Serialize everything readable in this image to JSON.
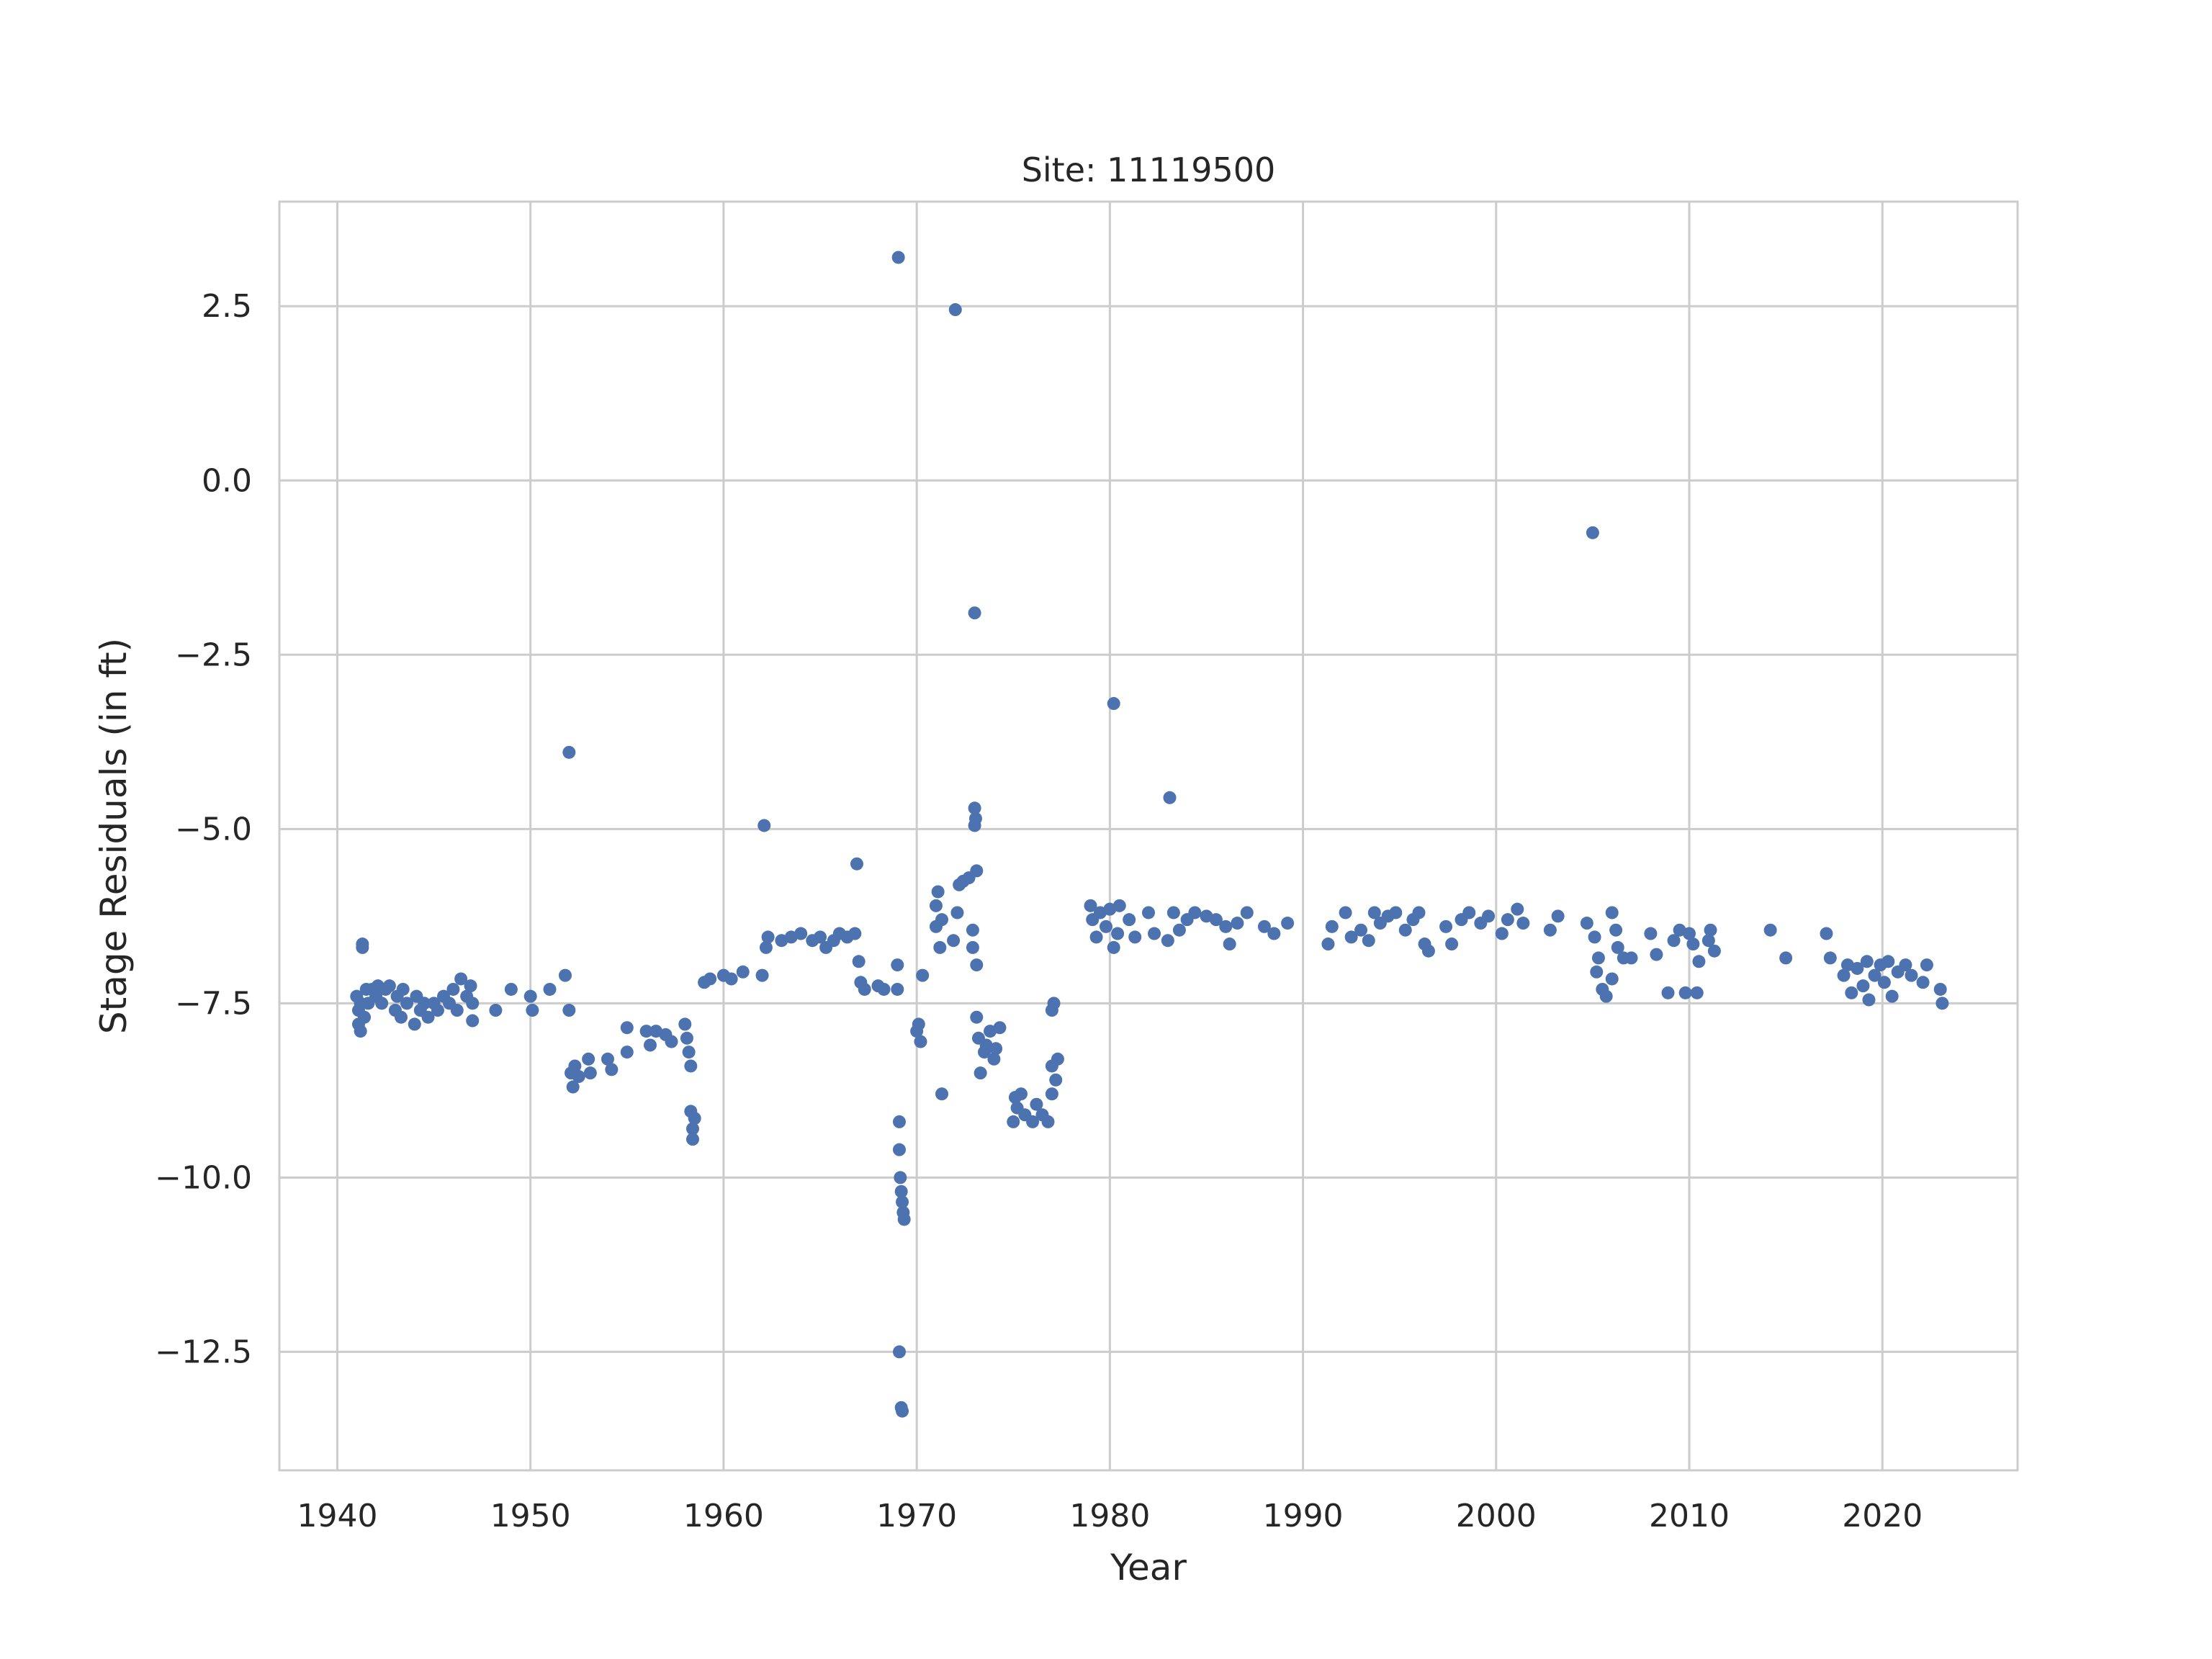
{
  "chart_data": {
    "type": "scatter",
    "title": "Site: 11119500",
    "xlabel": "Year",
    "ylabel": "Stage Residuals (in ft)",
    "xlim": [
      1937,
      2027
    ],
    "ylim": [
      -14.2,
      4.0
    ],
    "xticks": [
      1940,
      1950,
      1960,
      1970,
      1980,
      1990,
      2000,
      2010,
      2020
    ],
    "xtick_labels": [
      "1940",
      "1950",
      "1960",
      "1970",
      "1980",
      "1990",
      "2000",
      "2010",
      "2020"
    ],
    "yticks": [
      2.5,
      0.0,
      -2.5,
      -5.0,
      -7.5,
      -10.0,
      -12.5
    ],
    "ytick_labels": [
      "2.5",
      "0.0",
      "−2.5",
      "−5.0",
      "−7.5",
      "−10.0",
      "−12.5"
    ],
    "grid": true,
    "marker_color": "#4c72b0",
    "points": [
      [
        1941.0,
        -7.4
      ],
      [
        1941.1,
        -7.6
      ],
      [
        1941.1,
        -7.8
      ],
      [
        1941.2,
        -7.9
      ],
      [
        1941.2,
        -7.5
      ],
      [
        1941.3,
        -6.7
      ],
      [
        1941.3,
        -6.65
      ],
      [
        1941.4,
        -7.7
      ],
      [
        1941.5,
        -7.3
      ],
      [
        1941.6,
        -7.5
      ],
      [
        1941.8,
        -7.3
      ],
      [
        1942.0,
        -7.4
      ],
      [
        1942.1,
        -7.25
      ],
      [
        1942.3,
        -7.5
      ],
      [
        1942.5,
        -7.3
      ],
      [
        1942.7,
        -7.25
      ],
      [
        1943.0,
        -7.6
      ],
      [
        1943.1,
        -7.4
      ],
      [
        1943.3,
        -7.7
      ],
      [
        1943.4,
        -7.3
      ],
      [
        1943.6,
        -7.5
      ],
      [
        1944.0,
        -7.8
      ],
      [
        1944.1,
        -7.4
      ],
      [
        1944.3,
        -7.6
      ],
      [
        1944.5,
        -7.5
      ],
      [
        1944.7,
        -7.7
      ],
      [
        1945.0,
        -7.5
      ],
      [
        1945.2,
        -7.6
      ],
      [
        1945.5,
        -7.4
      ],
      [
        1945.8,
        -7.5
      ],
      [
        1946.0,
        -7.3
      ],
      [
        1946.2,
        -7.6
      ],
      [
        1946.4,
        -7.15
      ],
      [
        1946.7,
        -7.4
      ],
      [
        1946.9,
        -7.25
      ],
      [
        1947.0,
        -7.5
      ],
      [
        1947.0,
        -7.75
      ],
      [
        1948.2,
        -7.6
      ],
      [
        1949.0,
        -7.3
      ],
      [
        1950.0,
        -7.4
      ],
      [
        1950.1,
        -7.6
      ],
      [
        1951.0,
        -7.3
      ],
      [
        1951.8,
        -7.1
      ],
      [
        1952.0,
        -3.9
      ],
      [
        1952.0,
        -7.6
      ],
      [
        1952.1,
        -8.5
      ],
      [
        1952.2,
        -8.7
      ],
      [
        1952.3,
        -8.4
      ],
      [
        1952.5,
        -8.55
      ],
      [
        1953.0,
        -8.3
      ],
      [
        1953.1,
        -8.5
      ],
      [
        1954.0,
        -8.3
      ],
      [
        1954.2,
        -8.45
      ],
      [
        1955.0,
        -7.85
      ],
      [
        1955.0,
        -8.2
      ],
      [
        1956.0,
        -7.9
      ],
      [
        1956.2,
        -8.1
      ],
      [
        1956.5,
        -7.9
      ],
      [
        1957.0,
        -7.95
      ],
      [
        1957.3,
        -8.05
      ],
      [
        1958.0,
        -7.8
      ],
      [
        1958.1,
        -8.0
      ],
      [
        1958.2,
        -8.2
      ],
      [
        1958.3,
        -8.4
      ],
      [
        1958.3,
        -9.05
      ],
      [
        1958.4,
        -9.3
      ],
      [
        1958.4,
        -9.45
      ],
      [
        1958.5,
        -9.15
      ],
      [
        1959.0,
        -7.2
      ],
      [
        1959.3,
        -7.15
      ],
      [
        1960.0,
        -7.1
      ],
      [
        1960.4,
        -7.15
      ],
      [
        1961.0,
        -7.05
      ],
      [
        1962.0,
        -7.1
      ],
      [
        1962.1,
        -4.95
      ],
      [
        1962.2,
        -6.7
      ],
      [
        1962.3,
        -6.55
      ],
      [
        1963.0,
        -6.6
      ],
      [
        1963.5,
        -6.55
      ],
      [
        1964.0,
        -6.5
      ],
      [
        1964.6,
        -6.6
      ],
      [
        1965.0,
        -6.55
      ],
      [
        1965.3,
        -6.7
      ],
      [
        1965.7,
        -6.6
      ],
      [
        1966.0,
        -6.5
      ],
      [
        1966.4,
        -6.55
      ],
      [
        1966.8,
        -6.5
      ],
      [
        1966.9,
        -5.5
      ],
      [
        1967.0,
        -6.9
      ],
      [
        1967.1,
        -7.2
      ],
      [
        1967.3,
        -7.3
      ],
      [
        1968.0,
        -7.25
      ],
      [
        1968.3,
        -7.3
      ],
      [
        1969.0,
        -7.3
      ],
      [
        1969.0,
        -6.95
      ],
      [
        1969.05,
        3.2
      ],
      [
        1969.1,
        -9.2
      ],
      [
        1969.1,
        -9.6
      ],
      [
        1969.15,
        -10.0
      ],
      [
        1969.2,
        -10.2
      ],
      [
        1969.25,
        -10.35
      ],
      [
        1969.3,
        -10.5
      ],
      [
        1969.35,
        -10.6
      ],
      [
        1969.1,
        -12.5
      ],
      [
        1969.2,
        -13.3
      ],
      [
        1969.25,
        -13.35
      ],
      [
        1970.0,
        -7.9
      ],
      [
        1970.1,
        -7.8
      ],
      [
        1970.2,
        -8.05
      ],
      [
        1970.3,
        -7.1
      ],
      [
        1971.0,
        -6.4
      ],
      [
        1971.0,
        -6.1
      ],
      [
        1971.1,
        -5.9
      ],
      [
        1971.2,
        -6.7
      ],
      [
        1971.3,
        -6.3
      ],
      [
        1971.3,
        -8.8
      ],
      [
        1971.9,
        -6.6
      ],
      [
        1972.0,
        2.45
      ],
      [
        1972.1,
        -6.2
      ],
      [
        1972.2,
        -5.8
      ],
      [
        1972.4,
        -5.75
      ],
      [
        1972.7,
        -5.7
      ],
      [
        1972.9,
        -6.7
      ],
      [
        1972.9,
        -6.45
      ],
      [
        1973.0,
        -1.9
      ],
      [
        1973.0,
        -4.7
      ],
      [
        1973.0,
        -4.95
      ],
      [
        1973.05,
        -4.85
      ],
      [
        1973.1,
        -5.6
      ],
      [
        1973.1,
        -7.7
      ],
      [
        1973.1,
        -6.95
      ],
      [
        1973.2,
        -8.0
      ],
      [
        1973.3,
        -8.5
      ],
      [
        1973.5,
        -8.2
      ],
      [
        1973.6,
        -8.1
      ],
      [
        1973.8,
        -7.9
      ],
      [
        1974.0,
        -8.3
      ],
      [
        1974.1,
        -8.15
      ],
      [
        1974.3,
        -7.85
      ],
      [
        1975.0,
        -9.2
      ],
      [
        1975.1,
        -8.85
      ],
      [
        1975.2,
        -9.0
      ],
      [
        1975.4,
        -8.8
      ],
      [
        1975.6,
        -9.1
      ],
      [
        1976.0,
        -9.2
      ],
      [
        1976.2,
        -8.95
      ],
      [
        1976.5,
        -9.1
      ],
      [
        1976.8,
        -9.2
      ],
      [
        1977.0,
        -7.6
      ],
      [
        1977.0,
        -8.4
      ],
      [
        1977.1,
        -7.5
      ],
      [
        1977.2,
        -8.6
      ],
      [
        1977.3,
        -8.3
      ],
      [
        1977.0,
        -8.8
      ],
      [
        1979.0,
        -6.1
      ],
      [
        1979.1,
        -6.3
      ],
      [
        1979.3,
        -6.55
      ],
      [
        1979.5,
        -6.2
      ],
      [
        1979.8,
        -6.4
      ],
      [
        1980.0,
        -6.15
      ],
      [
        1980.2,
        -3.2
      ],
      [
        1980.2,
        -6.7
      ],
      [
        1980.4,
        -6.5
      ],
      [
        1980.5,
        -6.1
      ],
      [
        1981.0,
        -6.3
      ],
      [
        1981.3,
        -6.55
      ],
      [
        1982.0,
        -6.2
      ],
      [
        1982.3,
        -6.5
      ],
      [
        1983.0,
        -6.6
      ],
      [
        1983.1,
        -4.55
      ],
      [
        1983.3,
        -6.2
      ],
      [
        1983.6,
        -6.45
      ],
      [
        1984.0,
        -6.3
      ],
      [
        1984.4,
        -6.2
      ],
      [
        1985.0,
        -6.25
      ],
      [
        1985.5,
        -6.3
      ],
      [
        1986.0,
        -6.4
      ],
      [
        1986.2,
        -6.65
      ],
      [
        1986.6,
        -6.35
      ],
      [
        1987.1,
        -6.2
      ],
      [
        1988.0,
        -6.4
      ],
      [
        1988.5,
        -6.5
      ],
      [
        1989.2,
        -6.35
      ],
      [
        1991.3,
        -6.65
      ],
      [
        1991.5,
        -6.4
      ],
      [
        1992.2,
        -6.2
      ],
      [
        1992.5,
        -6.55
      ],
      [
        1993.0,
        -6.45
      ],
      [
        1993.4,
        -6.6
      ],
      [
        1993.7,
        -6.2
      ],
      [
        1994.0,
        -6.35
      ],
      [
        1994.4,
        -6.25
      ],
      [
        1994.8,
        -6.2
      ],
      [
        1995.3,
        -6.45
      ],
      [
        1995.7,
        -6.3
      ],
      [
        1996.0,
        -6.2
      ],
      [
        1996.3,
        -6.65
      ],
      [
        1996.5,
        -6.75
      ],
      [
        1997.4,
        -6.4
      ],
      [
        1997.7,
        -6.65
      ],
      [
        1998.2,
        -6.3
      ],
      [
        1998.6,
        -6.2
      ],
      [
        1999.2,
        -6.35
      ],
      [
        1999.6,
        -6.25
      ],
      [
        2000.3,
        -6.5
      ],
      [
        2000.6,
        -6.3
      ],
      [
        2001.1,
        -6.15
      ],
      [
        2001.4,
        -6.35
      ],
      [
        2002.8,
        -6.45
      ],
      [
        2003.2,
        -6.25
      ],
      [
        2004.7,
        -6.35
      ],
      [
        2005.0,
        -0.75
      ],
      [
        2005.1,
        -6.55
      ],
      [
        2005.2,
        -7.05
      ],
      [
        2005.3,
        -6.85
      ],
      [
        2005.5,
        -7.3
      ],
      [
        2005.7,
        -7.4
      ],
      [
        2006.0,
        -7.15
      ],
      [
        2006.0,
        -6.2
      ],
      [
        2006.2,
        -6.45
      ],
      [
        2006.3,
        -6.7
      ],
      [
        2006.6,
        -6.85
      ],
      [
        2007.0,
        -6.85
      ],
      [
        2008.0,
        -6.5
      ],
      [
        2008.3,
        -6.8
      ],
      [
        2008.9,
        -7.35
      ],
      [
        2009.2,
        -6.6
      ],
      [
        2009.5,
        -6.45
      ],
      [
        2009.8,
        -7.35
      ],
      [
        2010.0,
        -6.5
      ],
      [
        2010.2,
        -6.65
      ],
      [
        2010.4,
        -7.35
      ],
      [
        2010.5,
        -6.9
      ],
      [
        2011.0,
        -6.6
      ],
      [
        2011.1,
        -6.45
      ],
      [
        2011.3,
        -6.75
      ],
      [
        2014.2,
        -6.45
      ],
      [
        2015.0,
        -6.85
      ],
      [
        2017.1,
        -6.5
      ],
      [
        2017.3,
        -6.85
      ],
      [
        2018.0,
        -7.1
      ],
      [
        2018.2,
        -6.95
      ],
      [
        2018.4,
        -7.35
      ],
      [
        2018.7,
        -7.0
      ],
      [
        2019.0,
        -7.25
      ],
      [
        2019.2,
        -6.9
      ],
      [
        2019.3,
        -7.45
      ],
      [
        2019.6,
        -7.1
      ],
      [
        2019.9,
        -6.95
      ],
      [
        2020.1,
        -7.2
      ],
      [
        2020.3,
        -6.9
      ],
      [
        2020.5,
        -7.4
      ],
      [
        2020.8,
        -7.05
      ],
      [
        2021.2,
        -6.95
      ],
      [
        2021.5,
        -7.1
      ],
      [
        2022.1,
        -7.2
      ],
      [
        2022.3,
        -6.95
      ],
      [
        2023.0,
        -7.3
      ],
      [
        2023.1,
        -7.5
      ]
    ]
  }
}
